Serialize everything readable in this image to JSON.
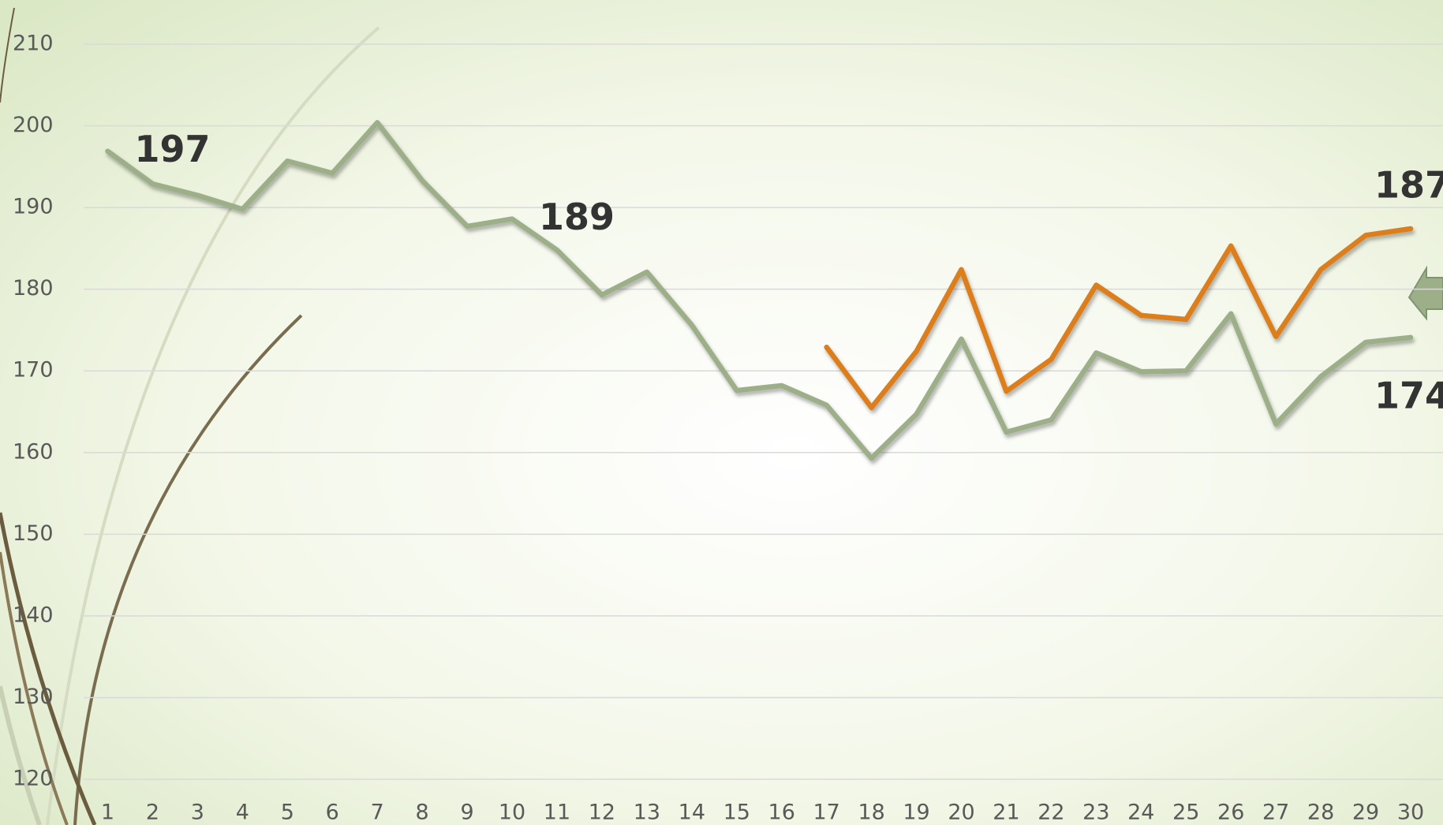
{
  "chart_data": {
    "type": "line",
    "categories": [
      "1",
      "2",
      "3",
      "4",
      "5",
      "6",
      "7",
      "8",
      "9",
      "10",
      "11",
      "12",
      "13",
      "14",
      "15",
      "16",
      "17",
      "18",
      "19",
      "20",
      "21",
      "22",
      "23",
      "24",
      "25",
      "26",
      "27",
      "28",
      "29",
      "30"
    ],
    "series": [
      {
        "color": "#9caf88",
        "values": [
          196.9,
          192.9,
          191.5,
          189.8,
          195.7,
          194.2,
          200.4,
          193.3,
          187.7,
          188.6,
          184.8,
          179.3,
          182.1,
          175.6,
          167.6,
          168.2,
          165.8,
          159.3,
          164.7,
          173.9,
          162.5,
          164.0,
          172.2,
          169.9,
          170.0,
          177.0,
          163.5,
          169.3,
          173.5,
          174.1
        ],
        "value_labels": [
          "197",
          null,
          null,
          null,
          null,
          null,
          null,
          null,
          null,
          "189",
          null,
          null,
          null,
          null,
          null,
          null,
          null,
          null,
          null,
          null,
          null,
          null,
          null,
          null,
          null,
          null,
          null,
          null,
          null,
          "174"
        ]
      },
      {
        "color": "#dd7e1e",
        "values": [
          null,
          null,
          null,
          null,
          null,
          null,
          null,
          null,
          null,
          null,
          null,
          null,
          null,
          null,
          null,
          null,
          172.9,
          165.5,
          172.4,
          182.4,
          167.5,
          171.4,
          180.5,
          176.8,
          176.3,
          185.3,
          174.2,
          182.4,
          186.6,
          187.4
        ],
        "value_labels": [
          null,
          null,
          null,
          null,
          null,
          null,
          null,
          null,
          null,
          null,
          null,
          null,
          null,
          null,
          null,
          null,
          null,
          null,
          null,
          null,
          null,
          null,
          null,
          null,
          null,
          null,
          null,
          null,
          null,
          "187"
        ]
      }
    ],
    "ylim": [
      120,
      210
    ],
    "yticks": [
      120,
      130,
      140,
      150,
      160,
      170,
      180,
      190,
      200,
      210
    ],
    "grid": true
  }
}
